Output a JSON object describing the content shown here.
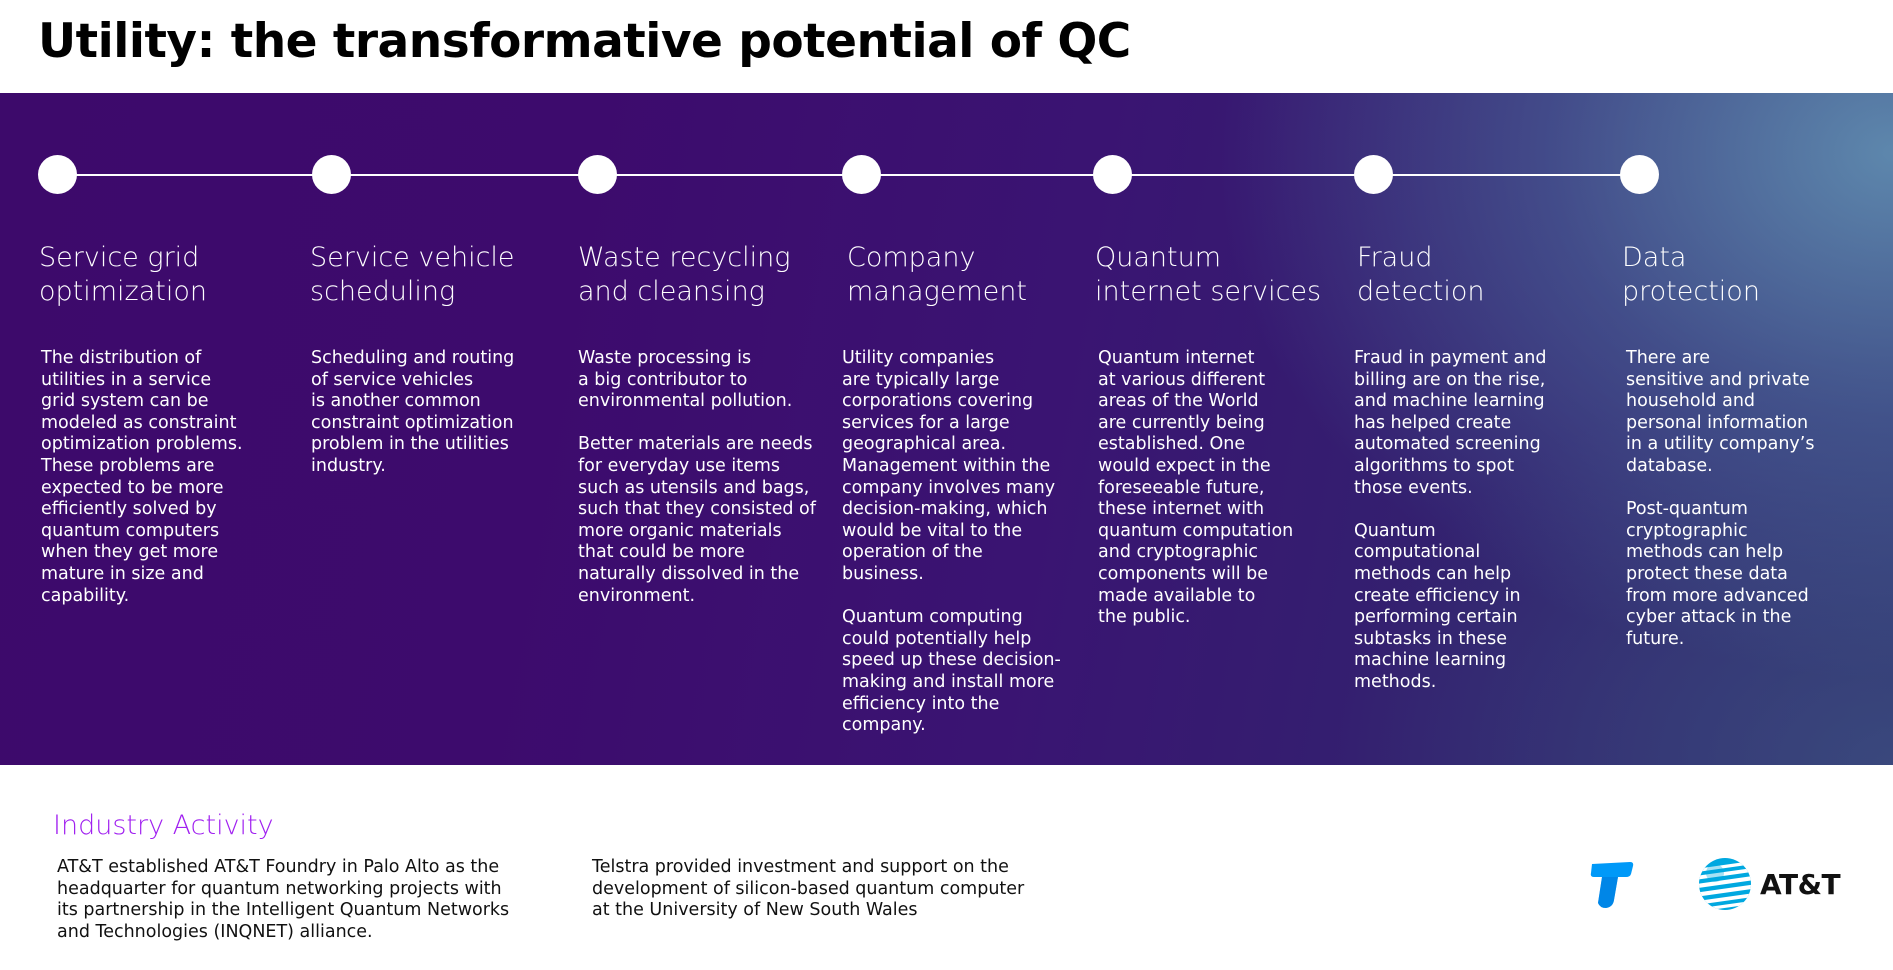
{
  "page": {
    "title": "Utility: the transformative potential of QC"
  },
  "colors": {
    "band_left": "#3d0a6b",
    "band_right": "#608cb0",
    "industry_accent": "#a020f0",
    "telstra_blue": "#0099f8",
    "att_blue": "#00a8e0"
  },
  "columns": [
    {
      "title": "Service grid\noptimization",
      "body": "The distribution of\nutilities in a service\ngrid system can be\nmodeled as constraint\noptimization problems.\nThese problems are\nexpected to be more\nefficiently solved by\nquantum computers\nwhen they get more\nmature in size and\ncapability."
    },
    {
      "title": "Service vehicle\nscheduling",
      "body": "Scheduling and routing\nof service vehicles\nis another common\nconstraint optimization\nproblem in the utilities\nindustry."
    },
    {
      "title": "Waste recycling\nand cleansing",
      "body": "Waste processing is\na big contributor to\nenvironmental pollution.\n\nBetter materials are needs\nfor everyday use items\nsuch as utensils and bags,\nsuch that they consisted of\nmore organic materials\nthat could be more\nnaturally dissolved in the\nenvironment."
    },
    {
      "title": "Company\nmanagement",
      "body": "Utility companies\nare typically large\ncorporations covering\nservices for a large\ngeographical area.\nManagement within the\ncompany involves many\ndecision-making, which\nwould be vital to the\noperation of the\nbusiness.\n\nQuantum computing\ncould potentially help\nspeed up these decision-\nmaking and install more\nefficiency into the\ncompany."
    },
    {
      "title": "Quantum\ninternet services",
      "body": "Quantum internet\nat various different\nareas of the World\nare currently being\nestablished. One\nwould expect in the\nforeseeable future,\nthese internet with\nquantum computation\nand cryptographic\ncomponents will be\nmade available to\nthe public."
    },
    {
      "title": "Fraud\ndetection",
      "body": "Fraud in payment and\nbilling are on the rise,\nand machine learning\nhas helped create\nautomated screening\nalgorithms to spot\nthose events.\n\nQuantum\ncomputational\nmethods can help\ncreate efficiency in\nperforming certain\nsubtasks in these\nmachine learning\nmethods."
    },
    {
      "title": "Data\nprotection",
      "body": "There are\nsensitive and private\nhousehold and\npersonal information\nin a utility company’s\ndatabase.\n\nPost-quantum\ncryptographic\nmethods can help\nprotect these data\nfrom more advanced\ncyber attack in the\nfuture."
    }
  ],
  "industry": {
    "title": "Industry Activity",
    "items": [
      "AT&T established AT&T Foundry in Palo Alto as the\nheadquarter for quantum networking projects with\nits partnership in the Intelligent Quantum Networks\nand Technologies (INQNET) alliance.",
      "Telstra provided investment and support on the\ndevelopment of silicon-based quantum computer\nat the University of New South Wales"
    ]
  },
  "logos": {
    "telstra_icon": "telstra-logo-icon",
    "att_icon": "att-globe-icon",
    "att_text": "AT&T"
  }
}
